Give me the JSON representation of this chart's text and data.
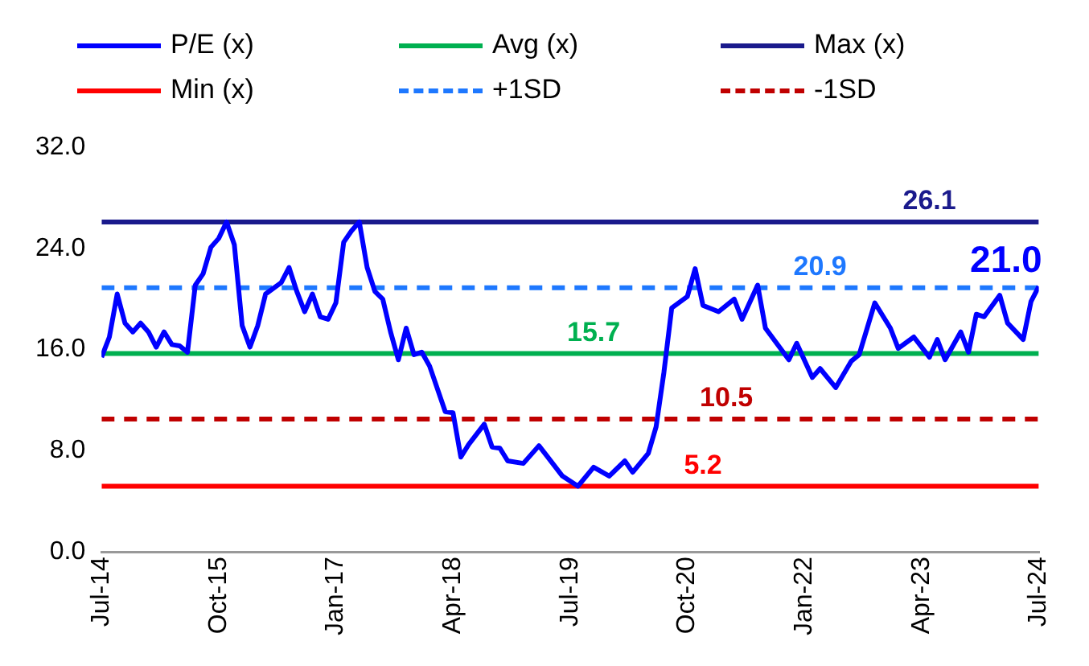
{
  "chart_data": {
    "type": "line",
    "legend": "top",
    "grid": false,
    "xlim": [
      "2014-07",
      "2024-07"
    ],
    "xticks": [
      {
        "value": "2014-07",
        "label": "Jul-14"
      },
      {
        "value": "2015-10",
        "label": "Oct-15"
      },
      {
        "value": "2017-01",
        "label": "Jan-17"
      },
      {
        "value": "2018-04",
        "label": "Apr-18"
      },
      {
        "value": "2019-07",
        "label": "Jul-19"
      },
      {
        "value": "2020-10",
        "label": "Oct-20"
      },
      {
        "value": "2022-01",
        "label": "Jan-22"
      },
      {
        "value": "2023-04",
        "label": "Apr-23"
      },
      {
        "value": "2024-07",
        "label": "Jul-24"
      }
    ],
    "ylim": [
      0,
      32
    ],
    "yticks": [
      {
        "value": 0,
        "label": "0.0"
      },
      {
        "value": 8,
        "label": "8.0"
      },
      {
        "value": 16,
        "label": "16.0"
      },
      {
        "value": 24,
        "label": "24.0"
      },
      {
        "value": 32,
        "label": "32.0"
      }
    ],
    "series": [
      {
        "name": "P/E (x)",
        "color": "#0000ff",
        "line_style": "solid",
        "x": [
          "2014-07",
          "2014-08",
          "2014-09",
          "2014-10",
          "2014-11",
          "2014-12",
          "2015-01",
          "2015-02",
          "2015-03",
          "2015-04",
          "2015-05",
          "2015-06",
          "2015-07",
          "2015-08",
          "2015-09",
          "2015-10",
          "2015-11",
          "2015-12",
          "2016-01",
          "2016-02",
          "2016-03",
          "2016-04",
          "2016-06",
          "2016-07",
          "2016-08",
          "2016-09",
          "2016-10",
          "2016-11",
          "2016-12",
          "2017-01",
          "2017-02",
          "2017-03",
          "2017-04",
          "2017-05",
          "2017-06",
          "2017-07",
          "2017-08",
          "2017-09",
          "2017-10",
          "2017-11",
          "2017-12",
          "2018-01",
          "2018-03",
          "2018-04",
          "2018-05",
          "2018-06",
          "2018-08",
          "2018-09",
          "2018-10",
          "2018-11",
          "2019-01",
          "2019-03",
          "2019-04",
          "2019-06",
          "2019-08",
          "2019-10",
          "2019-12",
          "2020-02",
          "2020-03",
          "2020-05",
          "2020-06",
          "2020-07",
          "2020-08",
          "2020-10",
          "2020-11",
          "2020-12",
          "2021-02",
          "2021-04",
          "2021-05",
          "2021-07",
          "2021-08",
          "2021-11",
          "2021-12",
          "2022-02",
          "2022-03",
          "2022-05",
          "2022-07",
          "2022-08",
          "2022-10",
          "2022-12",
          "2023-01",
          "2023-03",
          "2023-05",
          "2023-06",
          "2023-07",
          "2023-09",
          "2023-10",
          "2023-11",
          "2023-12",
          "2024-02",
          "2024-03",
          "2024-05",
          "2024-06",
          "2024-07"
        ],
        "values": [
          15.4,
          17.0,
          20.4,
          18.1,
          17.4,
          18.1,
          17.4,
          16.2,
          17.4,
          16.4,
          16.3,
          15.8,
          21.1,
          22.0,
          24.1,
          24.8,
          26.1,
          24.3,
          17.9,
          16.2,
          17.9,
          20.4,
          21.3,
          22.5,
          20.6,
          19.0,
          20.4,
          18.6,
          18.4,
          19.7,
          24.5,
          25.4,
          26.1,
          22.5,
          20.6,
          20.0,
          17.4,
          15.2,
          17.7,
          15.6,
          15.8,
          14.7,
          11.1,
          11.0,
          7.5,
          8.5,
          10.1,
          8.3,
          8.2,
          7.2,
          7.0,
          8.4,
          7.6,
          6.0,
          5.2,
          6.7,
          6.0,
          7.2,
          6.3,
          7.8,
          9.9,
          14.2,
          19.3,
          20.2,
          22.4,
          19.5,
          19.0,
          20.0,
          18.4,
          21.1,
          17.7,
          15.2,
          16.5,
          13.8,
          14.5,
          13.0,
          15.1,
          15.6,
          19.7,
          17.7,
          16.1,
          17.0,
          15.4,
          16.8,
          15.2,
          17.4,
          15.8,
          18.8,
          18.6,
          20.3,
          18.1,
          16.8,
          19.8,
          21.0
        ],
        "value_labels": [
          null,
          null,
          null,
          null,
          null,
          null,
          null,
          null,
          null,
          null,
          null,
          null,
          null,
          null,
          null,
          null,
          null,
          null,
          null,
          null,
          null,
          null,
          null,
          null,
          null,
          null,
          null,
          null,
          null,
          null,
          null,
          null,
          null,
          null,
          null,
          null,
          null,
          null,
          null,
          null,
          null,
          null,
          null,
          null,
          null,
          null,
          null,
          null,
          null,
          null,
          null,
          null,
          null,
          null,
          null,
          null,
          null,
          null,
          null,
          null,
          null,
          null,
          null,
          null,
          null,
          null,
          null,
          null,
          null,
          null,
          null,
          null,
          null,
          null,
          null,
          null,
          null,
          null,
          null,
          null,
          null,
          null,
          null,
          null,
          null,
          null,
          null,
          null,
          null,
          null,
          null,
          null,
          null,
          "21.0"
        ]
      },
      {
        "name": "Avg (x)",
        "color": "#00b050",
        "line_style": "solid",
        "x": [
          "2014-07",
          "2019-10",
          "2024-07"
        ],
        "values": [
          15.7,
          15.7,
          15.7
        ],
        "value_labels": [
          null,
          "15.7",
          null
        ]
      },
      {
        "name": "Max (x)",
        "color": "#1a1a8c",
        "line_style": "solid",
        "x": [
          "2014-07",
          "2023-05",
          "2024-07"
        ],
        "values": [
          26.1,
          26.1,
          26.1
        ],
        "value_labels": [
          null,
          "26.1",
          null
        ]
      },
      {
        "name": "Min (x)",
        "color": "#ff0000",
        "line_style": "solid",
        "x": [
          "2014-07",
          "2020-12",
          "2024-07"
        ],
        "values": [
          5.2,
          5.2,
          5.2
        ],
        "value_labels": [
          null,
          "5.2",
          null
        ]
      },
      {
        "name": "+1SD",
        "color": "#1e78ff",
        "line_style": "dashed",
        "x": [
          "2014-07",
          "2022-03",
          "2024-07"
        ],
        "values": [
          20.9,
          20.9,
          20.9
        ],
        "value_labels": [
          null,
          "20.9",
          null
        ]
      },
      {
        "name": "-1SD",
        "color": "#c00000",
        "line_style": "dashed",
        "x": [
          "2014-07",
          "2021-03",
          "2024-07"
        ],
        "values": [
          10.5,
          10.5,
          10.5
        ],
        "value_labels": [
          null,
          "10.5",
          null
        ]
      }
    ]
  }
}
